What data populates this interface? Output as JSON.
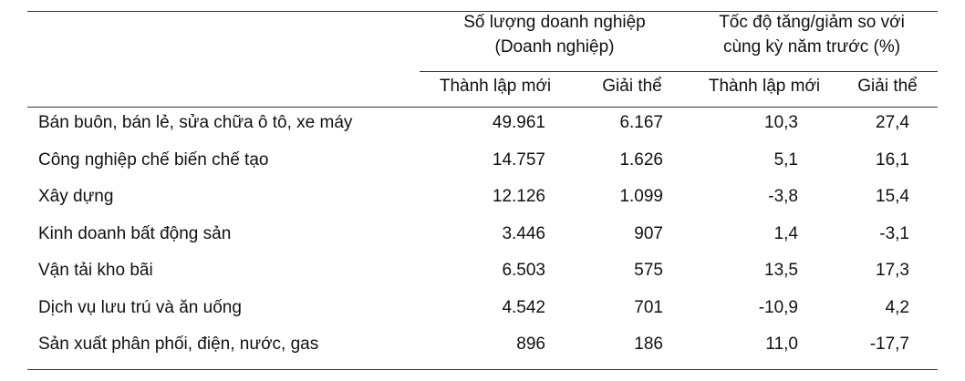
{
  "table": {
    "header_groups": [
      {
        "lines": [
          "Số lượng doanh nghiệp",
          "(Doanh nghiệp)"
        ]
      },
      {
        "lines": [
          "Tốc độ tăng/giảm so với",
          "cùng kỳ năm trước (%)"
        ]
      }
    ],
    "subheaders": [
      "Thành lập mới",
      "Giải thể",
      "Thành lập mới",
      "Giải thể"
    ],
    "rows": [
      [
        "Bán buôn, bán lẻ, sửa chữa ô tô, xe máy",
        "49.961",
        "6.167",
        "10,3",
        "27,4"
      ],
      [
        "Công nghiệp chế biến chế tạo",
        "14.757",
        "1.626",
        "5,1",
        "16,1"
      ],
      [
        "Xây dựng",
        "12.126",
        "1.099",
        "-3,8",
        "15,4"
      ],
      [
        "Kinh doanh bất động sản",
        "3.446",
        "907",
        "1,4",
        "-3,1"
      ],
      [
        "Vận tải kho bãi",
        "6.503",
        "575",
        "13,5",
        "17,3"
      ],
      [
        "Dịch vụ lưu trú và ăn uống",
        "4.542",
        "701",
        "-10,9",
        "4,2"
      ],
      [
        "Sản xuất phân phối, điện, nước, gas",
        "896",
        "186",
        "11,0",
        "-17,7"
      ]
    ]
  }
}
